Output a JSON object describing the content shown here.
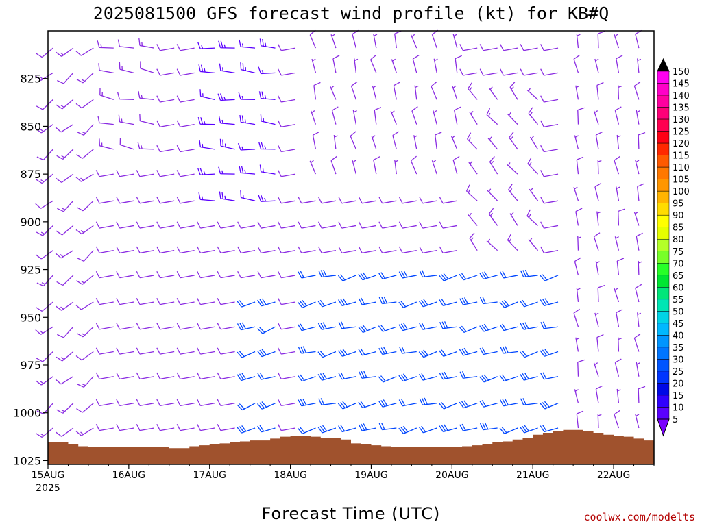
{
  "chart_data": {
    "type": "wind-barb-profile",
    "title": "2025081500 GFS forecast wind profile (kt) for KB#Q",
    "xlabel": "Forecast Time (UTC)",
    "credit": "coolwx.com/modelts",
    "units": "kt",
    "x_range_hours": [
      0,
      180
    ],
    "x_ticks": [
      {
        "label": "15AUG",
        "sub": "2025",
        "hour": 0
      },
      {
        "label": "16AUG",
        "sub": "",
        "hour": 24
      },
      {
        "label": "17AUG",
        "sub": "",
        "hour": 48
      },
      {
        "label": "18AUG",
        "sub": "",
        "hour": 72
      },
      {
        "label": "19AUG",
        "sub": "",
        "hour": 96
      },
      {
        "label": "20AUG",
        "sub": "",
        "hour": 120
      },
      {
        "label": "21AUG",
        "sub": "",
        "hour": 144
      },
      {
        "label": "22AUG",
        "sub": "",
        "hour": 168
      }
    ],
    "y_range_hpa": [
      1027,
      800
    ],
    "y_ticks": [
      "825",
      "850",
      "875",
      "900",
      "925",
      "950",
      "975",
      "1000",
      "1025"
    ],
    "colorbar": [
      "5",
      "10",
      "15",
      "20",
      "25",
      "30",
      "35",
      "40",
      "45",
      "50",
      "55",
      "60",
      "65",
      "70",
      "75",
      "80",
      "85",
      "90",
      "95",
      "100",
      "105",
      "110",
      "115",
      "120",
      "125",
      "130",
      "135",
      "140",
      "145",
      "150"
    ],
    "colorbar_colors": [
      "#7a00ff",
      "#5a00ff",
      "#3000ff",
      "#0008e6",
      "#0035ff",
      "#0055ff",
      "#0075ff",
      "#0095ff",
      "#00b8ff",
      "#00d4e6",
      "#00e6b4",
      "#00e67a",
      "#00e632",
      "#28ff28",
      "#78ff28",
      "#b4ff28",
      "#e6ff00",
      "#ffff00",
      "#ffdc00",
      "#ffb400",
      "#ff9600",
      "#ff7800",
      "#ff5a00",
      "#ff2800",
      "#ff0014",
      "#ff0050",
      "#ff0078",
      "#ff00a0",
      "#ff00c8",
      "#ff00f0"
    ],
    "levels_hpa": [
      809,
      822,
      836,
      849,
      862,
      875,
      889,
      902,
      915,
      928,
      942,
      955,
      968,
      981,
      995,
      1008,
      1021
    ],
    "surface_pressure": {
      "hours": [
        0,
        3,
        6,
        9,
        12,
        15,
        18,
        21,
        24,
        27,
        30,
        33,
        36,
        39,
        42,
        45,
        48,
        51,
        54,
        57,
        60,
        63,
        66,
        69,
        72,
        75,
        78,
        81,
        84,
        87,
        90,
        93,
        96,
        99,
        102,
        105,
        108,
        111,
        114,
        117,
        120,
        123,
        126,
        129,
        132,
        135,
        138,
        141,
        144,
        147,
        150,
        153,
        156,
        159,
        162,
        165,
        168,
        171,
        174,
        177,
        180
      ],
      "hpa": [
        1015.5,
        1015.5,
        1016.5,
        1017.5,
        1018,
        1018,
        1018,
        1018,
        1018,
        1018,
        1018,
        1017.8,
        1018.5,
        1018.5,
        1017.5,
        1017,
        1016.5,
        1016,
        1015.5,
        1015,
        1014.5,
        1014.5,
        1013.5,
        1012.5,
        1012,
        1012,
        1012.5,
        1013,
        1013,
        1014,
        1016,
        1016.5,
        1017,
        1017.5,
        1018,
        1018,
        1018,
        1018,
        1018,
        1018,
        1018,
        1017.5,
        1017,
        1016.5,
        1015.5,
        1015,
        1014,
        1013,
        1011.5,
        1010.5,
        1009.5,
        1009,
        1009,
        1009.5,
        1010.5,
        1011.5,
        1012,
        1012.5,
        1013.5,
        1014.5,
        1015
      ]
    },
    "wind_segments": [
      {
        "hour_start": 0,
        "hour_end": 18,
        "levels": "1021-809",
        "dir_deg": 230,
        "speed_kt": [
          10,
          15
        ],
        "color_class": "violet"
      },
      {
        "hour_start": 18,
        "hour_end": 33,
        "levels": "809-862",
        "dir_deg": 280,
        "speed_kt": [
          10,
          15
        ],
        "color_class": "violet"
      },
      {
        "hour_start": 48,
        "hour_end": 72,
        "levels": "809-889",
        "dir_deg": 275,
        "speed_kt": [
          15,
          25
        ],
        "color_class": "blue-violet"
      },
      {
        "hour_start": 60,
        "hour_end": 72,
        "levels": "942-1021",
        "dir_deg": 250,
        "speed_kt": [
          20,
          30
        ],
        "color_class": "blue"
      },
      {
        "hour_start": 78,
        "hour_end": 126,
        "levels": "809-875",
        "dir_deg": 345,
        "speed_kt": [
          5,
          10
        ],
        "color_class": "violet"
      },
      {
        "hour_start": 78,
        "hour_end": 156,
        "levels": "928-1021",
        "dir_deg": 255,
        "speed_kt": [
          20,
          30
        ],
        "color_class": "blue"
      },
      {
        "hour_start": 126,
        "hour_end": 150,
        "levels": "836-915",
        "dir_deg": 320,
        "speed_kt": [
          5,
          15
        ],
        "color_class": "violet"
      },
      {
        "hour_start": 156,
        "hour_end": 180,
        "levels": "809-1021",
        "dir_deg": 350,
        "speed_kt": [
          5,
          10
        ],
        "color_class": "violet"
      }
    ]
  }
}
